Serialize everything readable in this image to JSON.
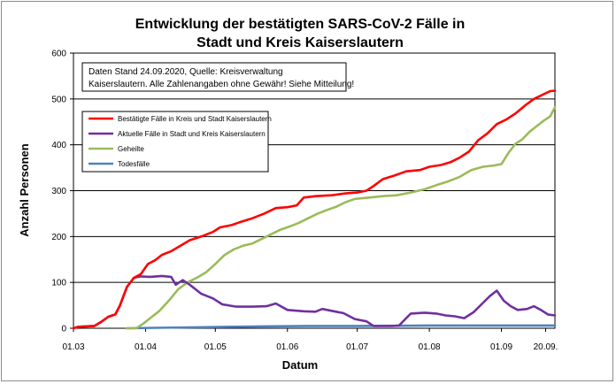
{
  "chart_data": {
    "type": "line",
    "title_lines": [
      "Entwicklung der bestätigten SARS-CoV-2 Fälle in",
      "Stadt und Kreis Kaiserslautern"
    ],
    "xlabel": "Datum",
    "ylabel": "Anzahl Personen",
    "x_ticks": [
      "01.03",
      "01.04",
      "01.05",
      "01.06",
      "01.07",
      "01.08",
      "01.09",
      "20.09."
    ],
    "x_tick_dates": [
      "2020-03-01",
      "2020-04-01",
      "2020-05-01",
      "2020-06-01",
      "2020-07-01",
      "2020-08-01",
      "2020-09-01",
      "2020-09-20"
    ],
    "x_range": [
      "2020-03-01",
      "2020-09-24"
    ],
    "y_ticks": [
      0,
      100,
      200,
      300,
      400,
      500,
      600
    ],
    "ylim": [
      0,
      600
    ],
    "grid": "horizontal",
    "note_lines": [
      "Daten Stand 24.09.2020, Quelle: Kreisverwaltung",
      "Kaiserslautern. Alle Zahlenangaben ohne Gewähr! Siehe Mitteilung!"
    ],
    "legend_position": "upper-left",
    "series": [
      {
        "name": "Bestätigte Fälle in Kreis und Stadt Kaiserslautern",
        "color": "#ff0000",
        "points": [
          [
            "2020-03-01",
            0
          ],
          [
            "2020-03-03",
            3
          ],
          [
            "2020-03-06",
            4
          ],
          [
            "2020-03-10",
            5
          ],
          [
            "2020-03-13",
            14
          ],
          [
            "2020-03-16",
            25
          ],
          [
            "2020-03-19",
            30
          ],
          [
            "2020-03-21",
            50
          ],
          [
            "2020-03-24",
            90
          ],
          [
            "2020-03-27",
            110
          ],
          [
            "2020-03-30",
            118
          ],
          [
            "2020-04-02",
            140
          ],
          [
            "2020-04-05",
            148
          ],
          [
            "2020-04-08",
            160
          ],
          [
            "2020-04-12",
            168
          ],
          [
            "2020-04-16",
            180
          ],
          [
            "2020-04-20",
            192
          ],
          [
            "2020-04-25",
            200
          ],
          [
            "2020-04-30",
            210
          ],
          [
            "2020-05-03",
            220
          ],
          [
            "2020-05-08",
            225
          ],
          [
            "2020-05-12",
            232
          ],
          [
            "2020-05-17",
            240
          ],
          [
            "2020-05-22",
            250
          ],
          [
            "2020-05-27",
            262
          ],
          [
            "2020-06-01",
            264
          ],
          [
            "2020-06-05",
            268
          ],
          [
            "2020-06-08",
            285
          ],
          [
            "2020-06-13",
            288
          ],
          [
            "2020-06-20",
            290
          ],
          [
            "2020-06-26",
            294
          ],
          [
            "2020-07-01",
            296
          ],
          [
            "2020-07-05",
            300
          ],
          [
            "2020-07-08",
            310
          ],
          [
            "2020-07-12",
            325
          ],
          [
            "2020-07-17",
            333
          ],
          [
            "2020-07-22",
            342
          ],
          [
            "2020-07-28",
            345
          ],
          [
            "2020-08-01",
            352
          ],
          [
            "2020-08-06",
            356
          ],
          [
            "2020-08-10",
            362
          ],
          [
            "2020-08-14",
            372
          ],
          [
            "2020-08-18",
            385
          ],
          [
            "2020-08-22",
            410
          ],
          [
            "2020-08-26",
            425
          ],
          [
            "2020-08-30",
            445
          ],
          [
            "2020-09-03",
            455
          ],
          [
            "2020-09-07",
            468
          ],
          [
            "2020-09-11",
            485
          ],
          [
            "2020-09-15",
            500
          ],
          [
            "2020-09-19",
            510
          ],
          [
            "2020-09-22",
            517
          ],
          [
            "2020-09-24",
            518
          ]
        ]
      },
      {
        "name": "Aktuelle Fälle in Stadt und Kreis Kaiserslautern",
        "color": "#7030a0",
        "points": [
          [
            "2020-03-01",
            0
          ],
          [
            "2020-03-03",
            3
          ],
          [
            "2020-03-06",
            4
          ],
          [
            "2020-03-10",
            5
          ],
          [
            "2020-03-13",
            14
          ],
          [
            "2020-03-16",
            25
          ],
          [
            "2020-03-19",
            30
          ],
          [
            "2020-03-21",
            50
          ],
          [
            "2020-03-24",
            90
          ],
          [
            "2020-03-27",
            110
          ],
          [
            "2020-03-30",
            113
          ],
          [
            "2020-04-03",
            112
          ],
          [
            "2020-04-08",
            114
          ],
          [
            "2020-04-12",
            112
          ],
          [
            "2020-04-14",
            95
          ],
          [
            "2020-04-17",
            105
          ],
          [
            "2020-04-20",
            95
          ],
          [
            "2020-04-25",
            75
          ],
          [
            "2020-04-30",
            65
          ],
          [
            "2020-05-04",
            52
          ],
          [
            "2020-05-10",
            47
          ],
          [
            "2020-05-17",
            47
          ],
          [
            "2020-05-23",
            48
          ],
          [
            "2020-05-27",
            54
          ],
          [
            "2020-06-01",
            40
          ],
          [
            "2020-06-08",
            37
          ],
          [
            "2020-06-13",
            36
          ],
          [
            "2020-06-16",
            42
          ],
          [
            "2020-06-20",
            38
          ],
          [
            "2020-06-25",
            33
          ],
          [
            "2020-06-30",
            20
          ],
          [
            "2020-07-05",
            15
          ],
          [
            "2020-07-08",
            5
          ],
          [
            "2020-07-12",
            5
          ],
          [
            "2020-07-16",
            5
          ],
          [
            "2020-07-19",
            6
          ],
          [
            "2020-07-24",
            32
          ],
          [
            "2020-07-30",
            34
          ],
          [
            "2020-08-04",
            32
          ],
          [
            "2020-08-08",
            28
          ],
          [
            "2020-08-12",
            26
          ],
          [
            "2020-08-16",
            22
          ],
          [
            "2020-08-20",
            35
          ],
          [
            "2020-08-24",
            55
          ],
          [
            "2020-08-27",
            70
          ],
          [
            "2020-08-30",
            82
          ],
          [
            "2020-09-02",
            60
          ],
          [
            "2020-09-05",
            48
          ],
          [
            "2020-09-08",
            40
          ],
          [
            "2020-09-12",
            42
          ],
          [
            "2020-09-15",
            48
          ],
          [
            "2020-09-18",
            40
          ],
          [
            "2020-09-21",
            30
          ],
          [
            "2020-09-24",
            28
          ]
        ]
      },
      {
        "name": "Geheilte",
        "color": "#9bbb59",
        "points": [
          [
            "2020-03-24",
            0
          ],
          [
            "2020-03-28",
            0
          ],
          [
            "2020-03-31",
            10
          ],
          [
            "2020-04-03",
            22
          ],
          [
            "2020-04-07",
            38
          ],
          [
            "2020-04-11",
            60
          ],
          [
            "2020-04-15",
            85
          ],
          [
            "2020-04-19",
            100
          ],
          [
            "2020-04-23",
            110
          ],
          [
            "2020-04-27",
            122
          ],
          [
            "2020-05-01",
            140
          ],
          [
            "2020-05-05",
            160
          ],
          [
            "2020-05-09",
            172
          ],
          [
            "2020-05-13",
            180
          ],
          [
            "2020-05-17",
            185
          ],
          [
            "2020-05-21",
            195
          ],
          [
            "2020-05-25",
            205
          ],
          [
            "2020-05-29",
            215
          ],
          [
            "2020-06-02",
            222
          ],
          [
            "2020-06-06",
            230
          ],
          [
            "2020-06-10",
            240
          ],
          [
            "2020-06-14",
            250
          ],
          [
            "2020-06-18",
            258
          ],
          [
            "2020-06-22",
            265
          ],
          [
            "2020-06-26",
            275
          ],
          [
            "2020-06-30",
            282
          ],
          [
            "2020-07-06",
            285
          ],
          [
            "2020-07-12",
            288
          ],
          [
            "2020-07-18",
            290
          ],
          [
            "2020-07-24",
            296
          ],
          [
            "2020-07-30",
            303
          ],
          [
            "2020-08-04",
            312
          ],
          [
            "2020-08-09",
            320
          ],
          [
            "2020-08-14",
            330
          ],
          [
            "2020-08-19",
            345
          ],
          [
            "2020-08-24",
            352
          ],
          [
            "2020-08-29",
            355
          ],
          [
            "2020-09-01",
            358
          ],
          [
            "2020-09-04",
            382
          ],
          [
            "2020-09-07",
            402
          ],
          [
            "2020-09-10",
            412
          ],
          [
            "2020-09-13",
            428
          ],
          [
            "2020-09-16",
            440
          ],
          [
            "2020-09-19",
            452
          ],
          [
            "2020-09-22",
            462
          ],
          [
            "2020-09-24",
            482
          ]
        ]
      },
      {
        "name": "Todesfälle",
        "color": "#4f81bd",
        "points": [
          [
            "2020-03-24",
            0
          ],
          [
            "2020-04-05",
            1
          ],
          [
            "2020-04-20",
            2
          ],
          [
            "2020-05-05",
            3
          ],
          [
            "2020-05-20",
            4
          ],
          [
            "2020-06-10",
            5
          ],
          [
            "2020-07-01",
            5
          ],
          [
            "2020-08-01",
            6
          ],
          [
            "2020-09-01",
            6
          ],
          [
            "2020-09-24",
            6
          ]
        ]
      }
    ]
  }
}
